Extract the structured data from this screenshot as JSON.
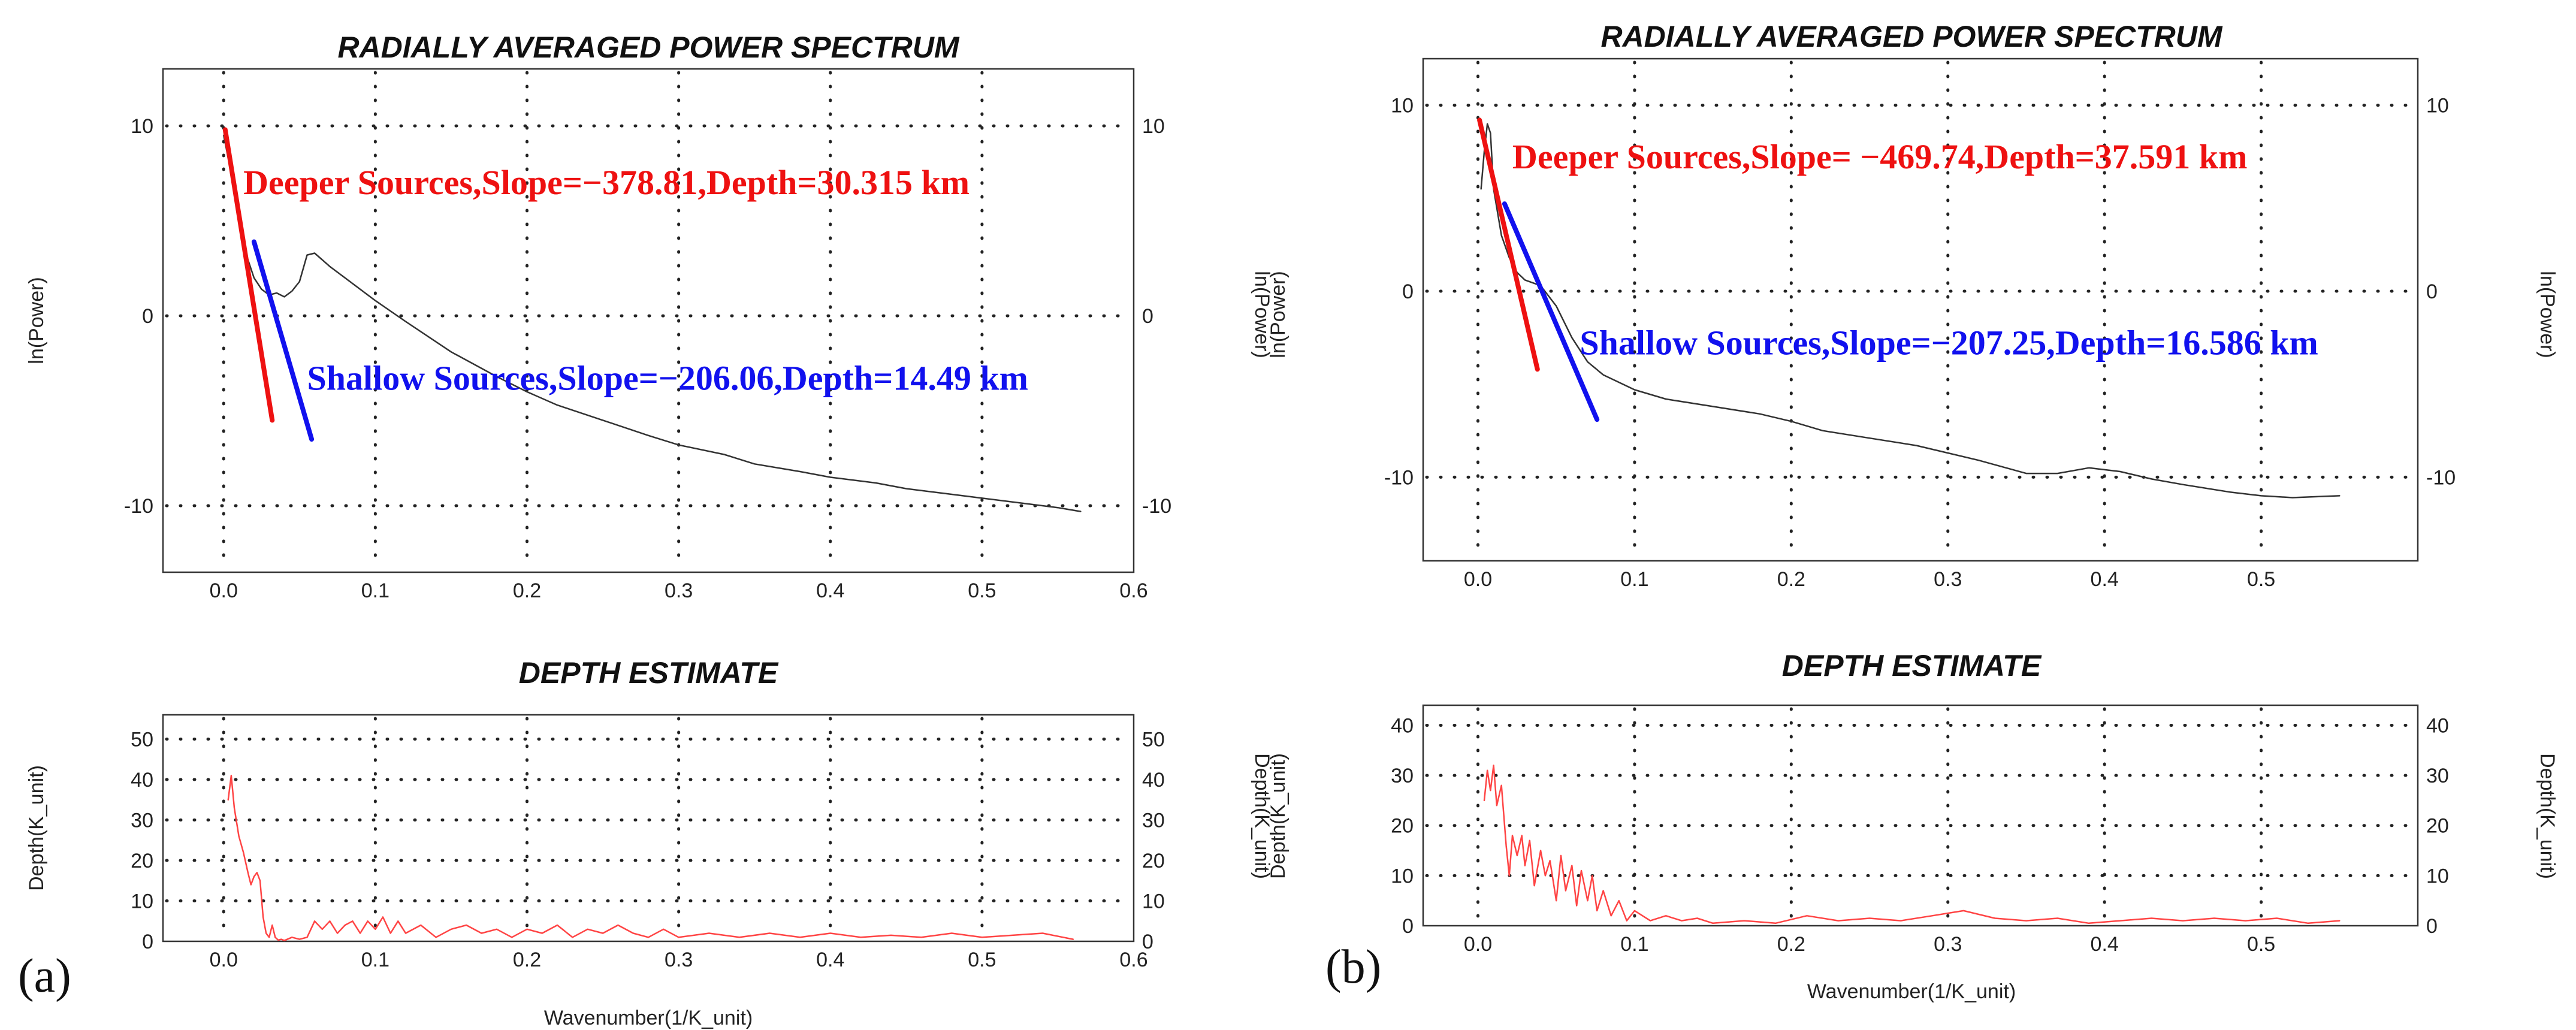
{
  "figure": {
    "panel_a_tag": "(a)",
    "panel_b_tag": "(b)"
  },
  "colors": {
    "deeper": "#ee1111",
    "shallow": "#1111ee",
    "spectrum": "#333333",
    "depth": "#ff4444"
  },
  "chart_data": [
    {
      "id": "a_spectrum",
      "type": "line",
      "title": "RADIALLY AVERAGED POWER SPECTRUM",
      "xlabel": "",
      "ylabel": "ln(Power)",
      "ylabel_right": "",
      "xlim": [
        -0.04,
        0.6
      ],
      "ylim": [
        -13.5,
        13
      ],
      "xticks": [
        0.0,
        0.1,
        0.2,
        0.3,
        0.4,
        0.5,
        0.6
      ],
      "xtick_labels": [
        "0.0",
        "0.1",
        "0.2",
        "0.3",
        "0.4",
        "0.5",
        "0.6"
      ],
      "yticks": [
        10,
        0,
        -10
      ],
      "ytick_labels": [
        "10",
        "0",
        "-10"
      ],
      "yticks_right": [
        10,
        0,
        -10
      ],
      "ytick_labels_right": [
        "10",
        "0",
        "-10"
      ],
      "series": [
        {
          "name": "spectrum",
          "color": "#333333",
          "x": [
            0.0,
            0.005,
            0.01,
            0.015,
            0.02,
            0.025,
            0.03,
            0.035,
            0.04,
            0.045,
            0.05,
            0.055,
            0.06,
            0.07,
            0.08,
            0.1,
            0.12,
            0.15,
            0.18,
            0.2,
            0.22,
            0.25,
            0.28,
            0.3,
            0.33,
            0.35,
            0.38,
            0.4,
            0.43,
            0.45,
            0.48,
            0.5,
            0.53,
            0.55,
            0.565
          ],
          "y": [
            9.5,
            7.5,
            5.0,
            3.2,
            2.0,
            1.4,
            1.1,
            1.2,
            1.0,
            1.3,
            1.8,
            3.2,
            3.3,
            2.6,
            2.0,
            0.8,
            -0.3,
            -1.9,
            -3.2,
            -4.0,
            -4.7,
            -5.5,
            -6.3,
            -6.8,
            -7.3,
            -7.8,
            -8.2,
            -8.5,
            -8.8,
            -9.1,
            -9.4,
            -9.6,
            -9.9,
            -10.1,
            -10.3
          ]
        },
        {
          "name": "Deeper Sources fit",
          "color": "#ee1111",
          "x": [
            0.001,
            0.032
          ],
          "y": [
            9.8,
            -5.5
          ]
        },
        {
          "name": "Shallow Sources fit",
          "color": "#1111ee",
          "x": [
            0.02,
            0.058
          ],
          "y": [
            3.9,
            -6.5
          ]
        }
      ],
      "annotations": [
        {
          "text": "Deeper Sources,Slope=−378.81,Depth=30.315 km",
          "color": "#ee1111",
          "x": 0.013,
          "y": 6.4
        },
        {
          "text": "Shallow Sources,Slope=−206.06,Depth=14.49 km",
          "color": "#1111ee",
          "x": 0.055,
          "y": -3.9
        }
      ]
    },
    {
      "id": "a_depth",
      "type": "line",
      "title": "DEPTH ESTIMATE",
      "xlabel": "Wavenumber(1/K_unit)",
      "ylabel": "Depth(K_unit)",
      "ylabel_right": "",
      "xlim": [
        -0.04,
        0.6
      ],
      "ylim": [
        0,
        56
      ],
      "xticks": [
        0.0,
        0.1,
        0.2,
        0.3,
        0.4,
        0.5,
        0.6
      ],
      "xtick_labels": [
        "0.0",
        "0.1",
        "0.2",
        "0.3",
        "0.4",
        "0.5",
        "0.6"
      ],
      "yticks": [
        0,
        10,
        20,
        30,
        40,
        50
      ],
      "ytick_labels": [
        "0",
        "10",
        "20",
        "30",
        "40",
        "50"
      ],
      "yticks_right": [
        0,
        10,
        20,
        30,
        40,
        50
      ],
      "ytick_labels_right": [
        "0",
        "10",
        "20",
        "30",
        "40",
        "50"
      ],
      "series": [
        {
          "name": "depth",
          "color": "#ff4444",
          "x": [
            0.003,
            0.005,
            0.007,
            0.01,
            0.013,
            0.016,
            0.018,
            0.02,
            0.022,
            0.024,
            0.026,
            0.028,
            0.03,
            0.032,
            0.034,
            0.036,
            0.038,
            0.04,
            0.045,
            0.05,
            0.055,
            0.06,
            0.065,
            0.07,
            0.075,
            0.08,
            0.085,
            0.09,
            0.095,
            0.1,
            0.105,
            0.11,
            0.115,
            0.12,
            0.13,
            0.14,
            0.15,
            0.16,
            0.17,
            0.18,
            0.19,
            0.2,
            0.21,
            0.22,
            0.23,
            0.24,
            0.25,
            0.26,
            0.27,
            0.28,
            0.29,
            0.3,
            0.32,
            0.34,
            0.36,
            0.38,
            0.4,
            0.42,
            0.44,
            0.46,
            0.48,
            0.5,
            0.52,
            0.54,
            0.56
          ],
          "y": [
            35,
            41,
            33,
            26,
            22,
            17,
            14,
            16,
            17,
            15,
            6,
            2,
            1,
            4,
            1,
            0.3,
            0.5,
            0.2,
            1,
            0.5,
            1,
            5,
            3,
            5,
            2,
            4,
            5,
            2,
            5,
            3,
            6,
            2,
            5,
            2,
            4,
            1,
            3,
            4,
            2,
            3,
            1,
            3,
            2,
            4,
            1,
            3,
            2,
            4,
            2,
            1,
            3,
            1,
            2,
            1,
            2,
            1,
            2,
            1,
            1.5,
            1,
            2,
            1,
            1.5,
            2,
            0.5
          ]
        }
      ],
      "annotations": []
    },
    {
      "id": "b_spectrum",
      "type": "line",
      "title": "RADIALLY AVERAGED POWER SPECTRUM",
      "xlabel": "",
      "ylabel": "ln(Power)",
      "ylabel_right": "ln(Power)",
      "xlim": [
        -0.035,
        0.6
      ],
      "ylim": [
        -14.5,
        12.5
      ],
      "xticks": [
        0.0,
        0.1,
        0.2,
        0.3,
        0.4,
        0.5
      ],
      "xtick_labels": [
        "0.0",
        "0.1",
        "0.2",
        "0.3",
        "0.4",
        "0.5"
      ],
      "yticks": [
        10,
        0,
        -10
      ],
      "ytick_labels": [
        "10",
        "0",
        "-10"
      ],
      "yticks_right": [
        10,
        0,
        -10
      ],
      "ytick_labels_right": [
        "10",
        "0",
        "-10"
      ],
      "series": [
        {
          "name": "spectrum",
          "color": "#333333",
          "x": [
            0.002,
            0.004,
            0.006,
            0.008,
            0.01,
            0.015,
            0.02,
            0.025,
            0.03,
            0.04,
            0.05,
            0.06,
            0.07,
            0.08,
            0.1,
            0.12,
            0.15,
            0.18,
            0.2,
            0.22,
            0.25,
            0.28,
            0.3,
            0.32,
            0.35,
            0.37,
            0.39,
            0.41,
            0.43,
            0.45,
            0.48,
            0.5,
            0.52,
            0.55
          ],
          "y": [
            5.5,
            7.5,
            9.0,
            8.5,
            5.5,
            3.0,
            1.8,
            1.0,
            0.6,
            0.3,
            -0.8,
            -2.5,
            -3.8,
            -4.5,
            -5.3,
            -5.8,
            -6.2,
            -6.6,
            -7.0,
            -7.5,
            -7.9,
            -8.3,
            -8.7,
            -9.1,
            -9.8,
            -9.8,
            -9.5,
            -9.7,
            -10.1,
            -10.4,
            -10.8,
            -11.0,
            -11.1,
            -11.0
          ]
        },
        {
          "name": "Deeper Sources fit",
          "color": "#ee1111",
          "x": [
            0.001,
            0.038
          ],
          "y": [
            9.2,
            -4.2
          ]
        },
        {
          "name": "Shallow Sources fit",
          "color": "#1111ee",
          "x": [
            0.017,
            0.076
          ],
          "y": [
            4.7,
            -6.9
          ]
        }
      ],
      "annotations": [
        {
          "text": "Deeper Sources,Slope= −469.74,Depth=37.591 km",
          "color": "#ee1111",
          "x": 0.022,
          "y": 6.6
        },
        {
          "text": "Shallow Sources,Slope=−207.25,Depth=16.586 km",
          "color": "#1111ee",
          "x": 0.065,
          "y": -3.4
        }
      ]
    },
    {
      "id": "b_depth",
      "type": "line",
      "title": "DEPTH ESTIMATE",
      "xlabel": "Wavenumber(1/K_unit)",
      "ylabel": "Depth(K_unit)",
      "ylabel_right": "Depth(K_unit)",
      "xlim": [
        -0.035,
        0.6
      ],
      "ylim": [
        0,
        44
      ],
      "xticks": [
        0.0,
        0.1,
        0.2,
        0.3,
        0.4,
        0.5
      ],
      "xtick_labels": [
        "0.0",
        "0.1",
        "0.2",
        "0.3",
        "0.4",
        "0.5"
      ],
      "yticks": [
        0,
        10,
        20,
        30,
        40
      ],
      "ytick_labels": [
        "0",
        "10",
        "20",
        "30",
        "40"
      ],
      "yticks_right": [
        0,
        10,
        20,
        30,
        40
      ],
      "ytick_labels_right": [
        "0",
        "10",
        "20",
        "30",
        "40"
      ],
      "series": [
        {
          "name": "depth",
          "color": "#ff4444",
          "x": [
            0.004,
            0.006,
            0.008,
            0.01,
            0.012,
            0.015,
            0.018,
            0.02,
            0.022,
            0.025,
            0.028,
            0.03,
            0.033,
            0.036,
            0.04,
            0.043,
            0.046,
            0.05,
            0.053,
            0.056,
            0.06,
            0.063,
            0.066,
            0.07,
            0.073,
            0.076,
            0.08,
            0.085,
            0.09,
            0.095,
            0.1,
            0.11,
            0.12,
            0.13,
            0.14,
            0.15,
            0.17,
            0.19,
            0.21,
            0.23,
            0.25,
            0.27,
            0.29,
            0.31,
            0.33,
            0.35,
            0.37,
            0.39,
            0.41,
            0.43,
            0.45,
            0.47,
            0.49,
            0.51,
            0.53,
            0.55
          ],
          "y": [
            25,
            31,
            27,
            32,
            24,
            28,
            16,
            10,
            18,
            14,
            18,
            12,
            17,
            8,
            15,
            10,
            13,
            5,
            14,
            7,
            12,
            4,
            11,
            5,
            10,
            3,
            7,
            2,
            5,
            1,
            3,
            1,
            2,
            1,
            1.5,
            0.5,
            1,
            0.5,
            2,
            1,
            1.5,
            1,
            2,
            3,
            1.5,
            1,
            1.5,
            0.5,
            1,
            1.5,
            1,
            1.5,
            1,
            1.5,
            0.5,
            1
          ]
        }
      ],
      "annotations": []
    }
  ]
}
